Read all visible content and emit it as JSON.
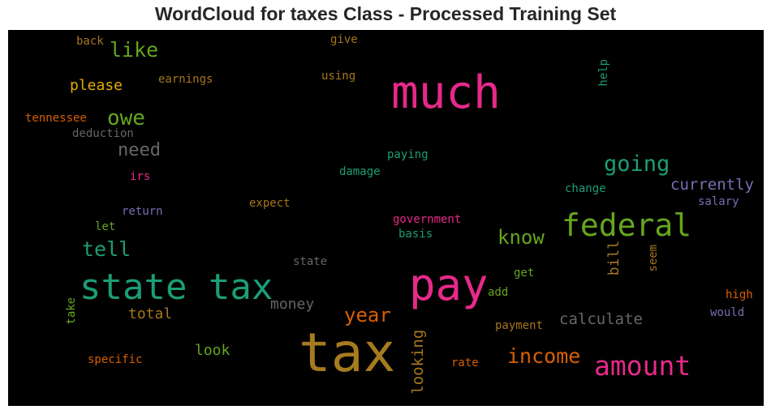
{
  "title": "WordCloud for taxes Class - Processed Training Set",
  "chart_data": {
    "type": "wordcloud",
    "background": "#000000",
    "words": [
      {
        "text": "tax",
        "color": "#a67a1f"
      },
      {
        "text": "much",
        "color": "#e7298a"
      },
      {
        "text": "pay",
        "color": "#e7298a"
      },
      {
        "text": "state tax",
        "color": "#1b9e77"
      },
      {
        "text": "federal",
        "color": "#66a61e"
      },
      {
        "text": "amount",
        "color": "#e7298a"
      },
      {
        "text": "income",
        "color": "#d95f02"
      },
      {
        "text": "owe",
        "color": "#66a61e"
      },
      {
        "text": "going",
        "color": "#1b9e77"
      },
      {
        "text": "like",
        "color": "#66a61e"
      },
      {
        "text": "know",
        "color": "#66a61e"
      },
      {
        "text": "tell",
        "color": "#1b9e77"
      },
      {
        "text": "year",
        "color": "#d95f02"
      },
      {
        "text": "need",
        "color": "#666666"
      },
      {
        "text": "currently",
        "color": "#7570b3"
      },
      {
        "text": "calculate",
        "color": "#666666"
      },
      {
        "text": "please",
        "color": "#e6ab02"
      },
      {
        "text": "looking",
        "color": "#a6761d"
      },
      {
        "text": "money",
        "color": "#666666"
      },
      {
        "text": "total",
        "color": "#a6761d"
      },
      {
        "text": "look",
        "color": "#66a61e"
      },
      {
        "text": "bill",
        "color": "#a6761d"
      },
      {
        "text": "earnings",
        "color": "#a6761d"
      },
      {
        "text": "tennessee",
        "color": "#d95f02"
      },
      {
        "text": "deduction",
        "color": "#666666"
      },
      {
        "text": "back",
        "color": "#a6761d"
      },
      {
        "text": "give",
        "color": "#a6761d"
      },
      {
        "text": "using",
        "color": "#a6761d"
      },
      {
        "text": "help",
        "color": "#1b9e77"
      },
      {
        "text": "paying",
        "color": "#1b9e77"
      },
      {
        "text": "damage",
        "color": "#1b9e77"
      },
      {
        "text": "change",
        "color": "#1b9e77"
      },
      {
        "text": "salary",
        "color": "#7570b3"
      },
      {
        "text": "irs",
        "color": "#e7298a"
      },
      {
        "text": "expect",
        "color": "#a6761d"
      },
      {
        "text": "return",
        "color": "#7570b3"
      },
      {
        "text": "government",
        "color": "#e7298a"
      },
      {
        "text": "basis",
        "color": "#1b9e77"
      },
      {
        "text": "let",
        "color": "#66a61e"
      },
      {
        "text": "state",
        "color": "#666666"
      },
      {
        "text": "seem",
        "color": "#a6761d"
      },
      {
        "text": "get",
        "color": "#66a61e"
      },
      {
        "text": "add",
        "color": "#66a61e"
      },
      {
        "text": "high",
        "color": "#d95f02"
      },
      {
        "text": "would",
        "color": "#7570b3"
      },
      {
        "text": "take",
        "color": "#66a61e"
      },
      {
        "text": "payment",
        "color": "#a6761d"
      },
      {
        "text": "specific",
        "color": "#d95f02"
      },
      {
        "text": "rate",
        "color": "#d95f02"
      }
    ]
  }
}
